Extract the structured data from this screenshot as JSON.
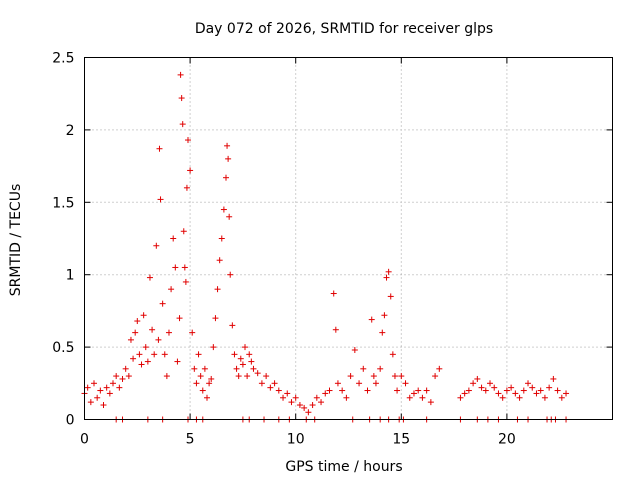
{
  "chart_data": {
    "type": "scatter",
    "title": "Day 072 of 2026, SRMTID for receiver glps",
    "xlabel": "GPS time / hours",
    "ylabel": "SRMTID / TECUs",
    "xlim": [
      0,
      25
    ],
    "ylim": [
      0,
      2.5
    ],
    "xticks": [
      0,
      5,
      10,
      15,
      20
    ],
    "xtick_labels": [
      "0",
      "5",
      "10",
      "15",
      "20"
    ],
    "yticks": [
      0,
      0.5,
      1,
      1.5,
      2,
      2.5
    ],
    "ytick_labels": [
      "0",
      "0.5",
      "1",
      "1.5",
      "2",
      "2.5"
    ],
    "grid": true,
    "marker": "+",
    "color": "#e00000",
    "series": [
      {
        "name": "SRMTID",
        "x": [
          0.0,
          0.15,
          0.3,
          0.45,
          0.6,
          0.75,
          0.9,
          1.05,
          1.2,
          1.35,
          1.5,
          1.65,
          1.8,
          1.95,
          2.1,
          2.2,
          2.3,
          2.4,
          2.5,
          2.6,
          2.7,
          2.8,
          2.9,
          3.0,
          3.1,
          3.2,
          3.3,
          3.4,
          3.5,
          3.55,
          3.6,
          3.7,
          3.8,
          3.9,
          4.0,
          4.1,
          4.2,
          4.3,
          4.4,
          4.5,
          4.55,
          4.6,
          4.65,
          4.7,
          4.75,
          4.8,
          4.85,
          4.9,
          5.0,
          5.1,
          5.2,
          5.3,
          5.4,
          5.5,
          5.6,
          5.7,
          5.8,
          5.9,
          6.0,
          6.1,
          6.2,
          6.3,
          6.4,
          6.5,
          6.6,
          6.7,
          6.75,
          6.8,
          6.85,
          6.9,
          7.0,
          7.1,
          7.2,
          7.3,
          7.4,
          7.5,
          7.6,
          7.7,
          7.8,
          7.9,
          8.0,
          8.2,
          8.4,
          8.6,
          8.8,
          9.0,
          9.2,
          9.4,
          9.6,
          9.8,
          10.0,
          10.2,
          10.4,
          10.6,
          10.8,
          11.0,
          11.2,
          11.4,
          11.6,
          11.8,
          11.9,
          12.0,
          12.2,
          12.4,
          12.6,
          12.8,
          13.0,
          13.2,
          13.4,
          13.6,
          13.7,
          13.8,
          14.0,
          14.1,
          14.2,
          14.3,
          14.4,
          14.5,
          14.6,
          14.7,
          14.8,
          15.0,
          15.2,
          15.4,
          15.6,
          15.8,
          16.0,
          16.2,
          16.4,
          16.6,
          16.8,
          17.8,
          18.0,
          18.2,
          18.4,
          18.6,
          18.8,
          19.0,
          19.2,
          19.4,
          19.6,
          19.8,
          20.0,
          20.2,
          20.4,
          20.6,
          20.8,
          21.0,
          21.2,
          21.4,
          21.6,
          21.8,
          22.0,
          22.2,
          22.4,
          22.6,
          22.8
        ],
        "y": [
          0.18,
          0.22,
          0.12,
          0.25,
          0.15,
          0.2,
          0.1,
          0.22,
          0.18,
          0.25,
          0.3,
          0.22,
          0.28,
          0.35,
          0.3,
          0.55,
          0.42,
          0.6,
          0.68,
          0.45,
          0.38,
          0.72,
          0.5,
          0.4,
          0.98,
          0.62,
          0.45,
          1.2,
          0.55,
          1.87,
          1.52,
          0.8,
          0.45,
          0.3,
          0.6,
          0.9,
          1.25,
          1.05,
          0.4,
          0.7,
          2.38,
          2.22,
          2.04,
          1.3,
          1.05,
          0.95,
          1.6,
          1.93,
          1.72,
          0.6,
          0.35,
          0.25,
          0.45,
          0.3,
          0.2,
          0.35,
          0.15,
          0.25,
          0.28,
          0.5,
          0.7,
          0.9,
          1.1,
          1.25,
          1.45,
          1.67,
          1.89,
          1.8,
          1.4,
          1.0,
          0.65,
          0.45,
          0.35,
          0.3,
          0.42,
          0.38,
          0.5,
          0.3,
          0.45,
          0.4,
          0.35,
          0.32,
          0.25,
          0.3,
          0.22,
          0.25,
          0.2,
          0.15,
          0.18,
          0.12,
          0.15,
          0.1,
          0.08,
          0.05,
          0.1,
          0.15,
          0.12,
          0.18,
          0.2,
          0.87,
          0.62,
          0.25,
          0.2,
          0.15,
          0.3,
          0.48,
          0.25,
          0.35,
          0.2,
          0.69,
          0.3,
          0.25,
          0.35,
          0.6,
          0.72,
          0.98,
          1.02,
          0.85,
          0.45,
          0.3,
          0.2,
          0.3,
          0.25,
          0.15,
          0.18,
          0.2,
          0.15,
          0.2,
          0.12,
          0.3,
          0.35,
          0.15,
          0.18,
          0.2,
          0.25,
          0.28,
          0.22,
          0.2,
          0.25,
          0.22,
          0.18,
          0.15,
          0.2,
          0.22,
          0.18,
          0.15,
          0.2,
          0.25,
          0.22,
          0.18,
          0.2,
          0.15,
          0.22,
          0.28,
          0.2,
          0.15,
          0.18
        ]
      }
    ],
    "zero_markers_x": [
      1.5,
      1.8,
      3.0,
      3.7,
      4.9,
      5.3,
      5.6,
      7.5,
      7.8,
      8.5,
      9.2,
      9.7,
      10.5,
      10.9,
      12.7,
      13.5,
      14.0,
      14.4,
      14.9,
      15.1,
      16.2,
      17.8,
      18.6,
      19.1,
      19.6,
      20.5,
      21.0,
      21.9,
      22.1,
      22.3,
      22.8
    ]
  }
}
